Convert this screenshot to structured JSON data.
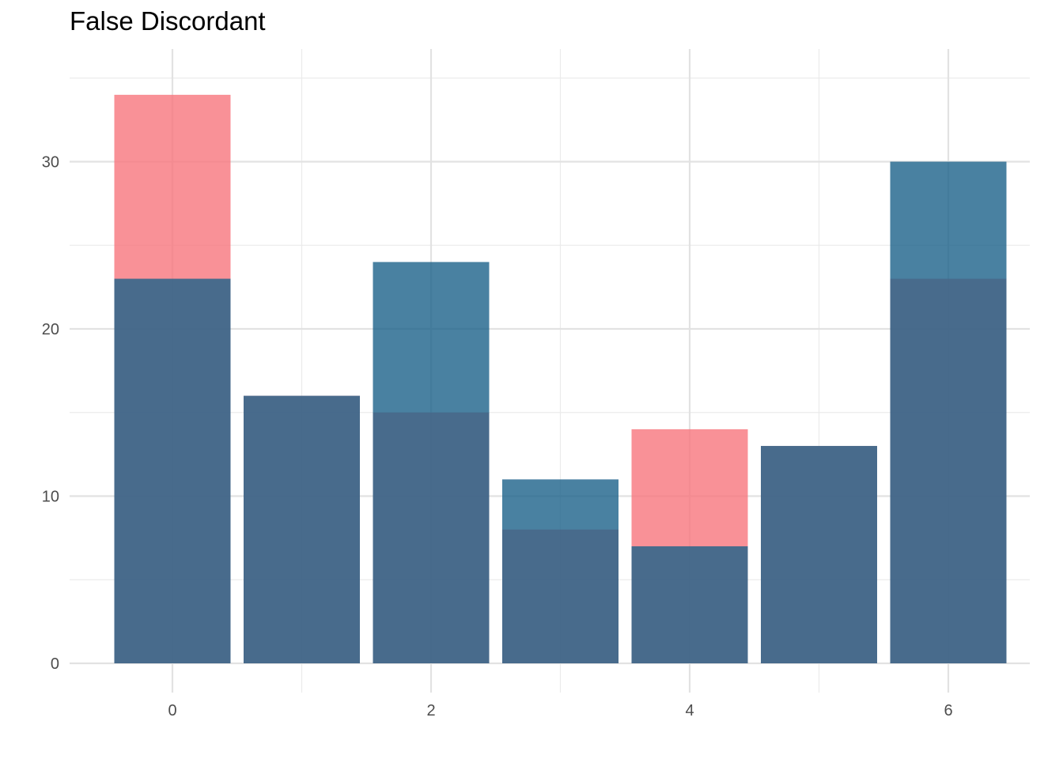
{
  "chart_data": {
    "type": "bar",
    "title": "False Discordant",
    "xlabel": "",
    "ylabel": "",
    "x": [
      0,
      1,
      2,
      3,
      4,
      5,
      6
    ],
    "series": [
      {
        "values": [
          34,
          16,
          15,
          8,
          14,
          13,
          23
        ],
        "color": "#F8767D",
        "opacity": 0.8
      },
      {
        "values": [
          23,
          16,
          24,
          11,
          7,
          13,
          30
        ],
        "color": "#1B6189",
        "opacity": 0.8
      }
    ],
    "x_ticks": [
      "0",
      "2",
      "4",
      "6"
    ],
    "y_ticks": [
      "0",
      "10",
      "20",
      "30"
    ],
    "xlim": [
      -0.6,
      6.6
    ],
    "ylim": [
      0,
      35.7
    ],
    "grid": true,
    "legend": "none"
  }
}
